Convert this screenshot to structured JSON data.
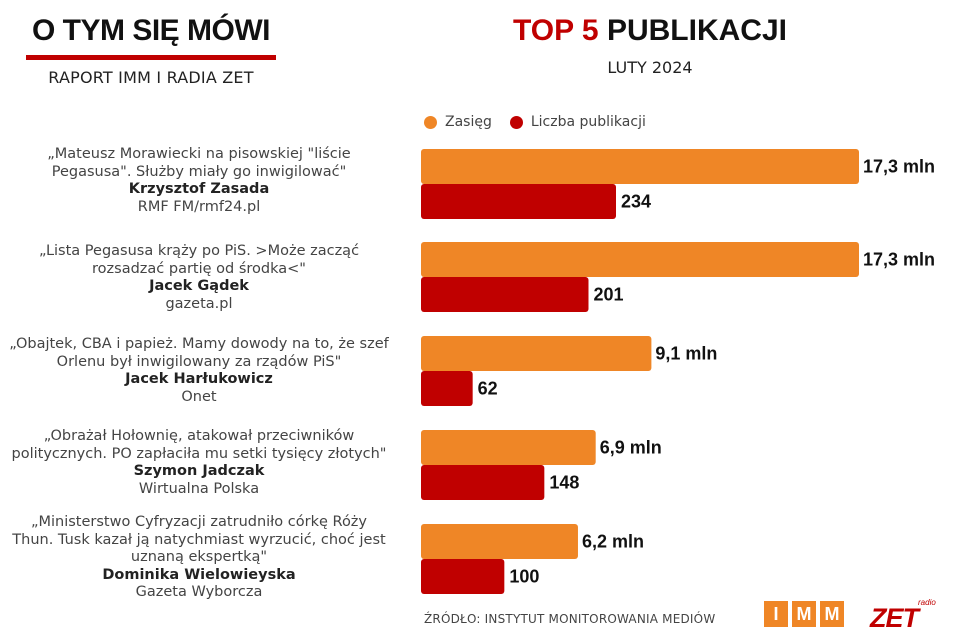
{
  "header": {
    "brand_title": "O TYM SIĘ MÓWI",
    "brand_subtitle": "RAPORT IMM I RADIA ZET",
    "title_accent": "TOP 5",
    "title_rest": "PUBLIKACJI",
    "subtitle": "LUTY 2024"
  },
  "colors": {
    "reach": "#ef8626",
    "count": "#c00000",
    "brand_red": "#c00000"
  },
  "entries": [
    {
      "line1": "„Mateusz Morawiecki na pisowskiej \"liście",
      "line2": "Pegasusa\". Służby miały go inwigilować\"",
      "line3": "",
      "author": "Krzysztof Zasada",
      "outlet": "RMF FM/rmf24.pl"
    },
    {
      "line1": "„Lista Pegasusa krąży po PiS. >Może zacząć",
      "line2": "rozsadzać partię od środka<\"",
      "line3": "",
      "author": "Jacek Gądek",
      "outlet": "gazeta.pl"
    },
    {
      "line1": "„Obajtek, CBA i papież. Mamy dowody na to, że szef",
      "line2": "Orlenu był inwigilowany za rządów PiS\"",
      "line3": "",
      "author": "Jacek Harłukowicz",
      "outlet": "Onet"
    },
    {
      "line1": "„Obrażał Hołownię, atakował przeciwników",
      "line2": "politycznych. PO zapłaciła mu setki tysięcy złotych\"",
      "line3": "",
      "author": "Szymon Jadczak",
      "outlet": "Wirtualna Polska"
    },
    {
      "line1": "„Ministerstwo Cyfryzacji zatrudniło córkę Róży",
      "line2": "Thun. Tusk kazał ją natychmiast wyrzucić, choć jest",
      "line3": "uznaną ekspertką\"",
      "author": "Dominika Wielowieyska",
      "outlet": "Gazeta Wyborcza"
    }
  ],
  "chart_data": {
    "type": "bar",
    "orientation": "horizontal",
    "grid": false,
    "legend_position": "top",
    "series": [
      {
        "name": "Zasięg",
        "unit": "mln",
        "values": [
          17.3,
          17.3,
          9.1,
          6.9,
          6.2
        ],
        "labels": [
          "17,3 mln",
          "17,3 mln",
          "9,1 mln",
          "6,9 mln",
          "6,2 mln"
        ]
      },
      {
        "name": "Liczba publikacji",
        "values": [
          234,
          201,
          62,
          148,
          100
        ],
        "labels": [
          "234",
          "201",
          "62",
          "148",
          "100"
        ]
      }
    ]
  },
  "footer": {
    "source": "ŹRÓDŁO: INSTYTUT MONITOROWANIA MEDIÓW",
    "imm_letters": [
      "I",
      "M",
      "M"
    ],
    "zet_small": "radio",
    "zet_word": "ZET"
  }
}
